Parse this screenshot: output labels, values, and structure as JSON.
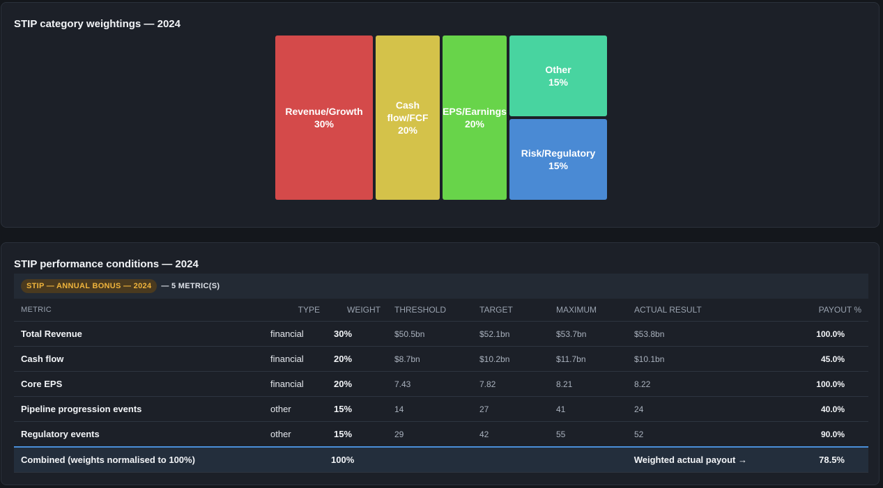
{
  "treemap": {
    "title": "STIP category weightings — 2024",
    "tiles": [
      {
        "label": "Revenue/Growth",
        "pct": "30%",
        "color": "#d44a4a"
      },
      {
        "label": "Cash flow/FCF",
        "pct": "20%",
        "color": "#d4c24a"
      },
      {
        "label": "EPS/Earnings",
        "pct": "20%",
        "color": "#68d44a"
      },
      {
        "label": "Other",
        "pct": "15%",
        "color": "#48d4a0"
      },
      {
        "label": "Risk/Regulatory",
        "pct": "15%",
        "color": "#4a8ad4"
      }
    ]
  },
  "conditions": {
    "title": "STIP performance conditions — 2024",
    "badge": "STIP — ANNUAL BONUS — 2024",
    "metric_count": "— 5 METRIC(S)",
    "headers": {
      "metric": "METRIC",
      "type": "TYPE",
      "weight": "WEIGHT",
      "threshold": "THRESHOLD",
      "target": "TARGET",
      "maximum": "MAXIMUM",
      "actual": "ACTUAL RESULT",
      "payout": "PAYOUT %"
    },
    "rows": [
      {
        "metric": "Total Revenue",
        "type": "financial",
        "weight": "30%",
        "threshold": "$50.5bn",
        "target": "$52.1bn",
        "maximum": "$53.7bn",
        "actual": "$53.8bn",
        "payout": "100.0%"
      },
      {
        "metric": "Cash flow",
        "type": "financial",
        "weight": "20%",
        "threshold": "$8.7bn",
        "target": "$10.2bn",
        "maximum": "$11.7bn",
        "actual": "$10.1bn",
        "payout": "45.0%"
      },
      {
        "metric": "Core EPS",
        "type": "financial",
        "weight": "20%",
        "threshold": "7.43",
        "target": "7.82",
        "maximum": "8.21",
        "actual": "8.22",
        "payout": "100.0%"
      },
      {
        "metric": "Pipeline progression events",
        "type": "other",
        "weight": "15%",
        "threshold": "14",
        "target": "27",
        "maximum": "41",
        "actual": "24",
        "payout": "40.0%"
      },
      {
        "metric": "Regulatory events",
        "type": "other",
        "weight": "15%",
        "threshold": "29",
        "target": "42",
        "maximum": "55",
        "actual": "52",
        "payout": "90.0%"
      }
    ],
    "total": {
      "label": "Combined (weights normalised to 100%)",
      "weight": "100%",
      "payout_label": "Weighted actual payout →",
      "payout": "78.5%"
    }
  }
}
